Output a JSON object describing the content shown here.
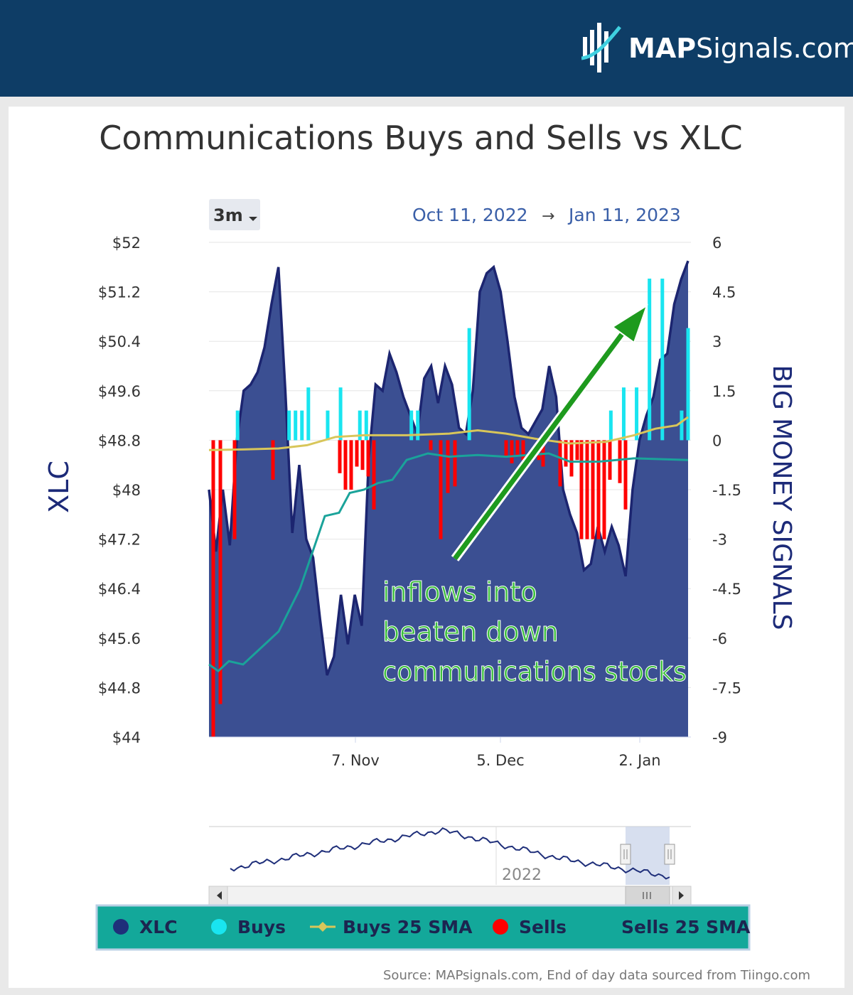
{
  "brand": {
    "bold": "MAP",
    "rest": "Signals.com"
  },
  "chart_data": {
    "type": "area",
    "title": "Communications Buys and Sells vs XLC",
    "range_button": "3m",
    "date_from": "Oct 11, 2022",
    "date_arrow": "→",
    "date_to": "Jan 11, 2023",
    "left_axis": {
      "label": "XLC",
      "ticks": [
        "$52",
        "$51.2",
        "$50.4",
        "$49.6",
        "$48.8",
        "$48",
        "$47.2",
        "$46.4",
        "$45.6",
        "$44.8",
        "$44"
      ],
      "range": [
        44,
        52
      ]
    },
    "right_axis": {
      "label": "BIG MONEY SIGNALS",
      "ticks": [
        "6",
        "4.5",
        "3",
        "1.5",
        "0",
        "-1.5",
        "-3",
        "-4.5",
        "-6",
        "-7.5",
        "-9"
      ],
      "range": [
        -9,
        6
      ]
    },
    "x_ticks": [
      "7. Nov",
      "5. Dec",
      "2. Jan"
    ],
    "xlc": [
      48,
      47.0,
      48.0,
      47.1,
      48.8,
      49.6,
      49.7,
      49.9,
      50.3,
      51.0,
      51.6,
      49.6,
      47.3,
      48.4,
      47.2,
      46.9,
      45.9,
      45.0,
      45.3,
      46.3,
      45.5,
      46.3,
      45.8,
      48.5,
      49.7,
      49.6,
      50.2,
      49.9,
      49.5,
      49.2,
      48.9,
      49.8,
      50.0,
      49.4,
      50.0,
      49.7,
      49.0,
      48.9,
      49.6,
      51.2,
      51.5,
      51.6,
      51.2,
      50.4,
      49.5,
      49.0,
      48.9,
      49.1,
      49.3,
      50.0,
      49.5,
      48.0,
      47.6,
      47.3,
      46.7,
      46.8,
      47.4,
      47.0,
      47.4,
      47.1,
      46.6,
      48.0,
      48.8,
      49.2,
      49.5,
      50.1,
      50.2,
      51.0,
      51.4,
      51.7
    ],
    "buys": [
      0,
      0,
      0,
      0,
      0.9,
      0,
      0,
      0,
      0,
      0,
      0,
      0,
      0.9,
      0.9,
      0.9,
      1.6,
      0,
      0,
      0.9,
      0,
      1.6,
      0,
      0,
      0.9,
      0.9,
      0,
      0,
      0,
      0,
      0,
      0,
      0.9,
      0.9,
      0,
      0,
      0,
      0,
      0,
      0,
      0,
      3.4,
      0,
      0,
      0,
      0,
      0,
      0,
      0,
      0,
      0,
      0,
      0,
      0,
      0,
      0,
      0,
      0,
      0,
      0,
      0,
      0,
      0,
      0.9,
      0,
      1.6,
      0,
      1.6,
      0,
      4.9,
      0,
      4.9,
      0,
      0,
      0.9,
      3.4
    ],
    "sells": [
      -9,
      -8,
      -3,
      -1.2,
      -1,
      -1.5,
      -1.5,
      -0.8,
      -0.9,
      -1.1,
      -2.1,
      -0.3,
      -3,
      -1.6,
      -1.4,
      -0.5,
      -0.7,
      -0.5,
      -0.6,
      -0.6,
      -0.8,
      -1.4,
      -0.8,
      -1.1,
      -0.6,
      -3,
      -3,
      -3,
      -3,
      -3,
      -1.2,
      -1.3,
      -2.1
    ],
    "series": [
      {
        "name": "XLC",
        "color": "#1f2f7a"
      },
      {
        "name": "Buys",
        "color": "#19e5f0"
      },
      {
        "name": "Buys 25 SMA",
        "color": "#d8c65a"
      },
      {
        "name": "Sells",
        "color": "#ff0000"
      },
      {
        "name": "Sells 25 SMA",
        "color": "#1aa39a"
      }
    ],
    "annotation": [
      "inflows into",
      "beaten down",
      "communications stocks"
    ],
    "navigator_label": "2022",
    "source": "Source: MAPsignals.com, End of day data sourced from Tiingo.com"
  }
}
